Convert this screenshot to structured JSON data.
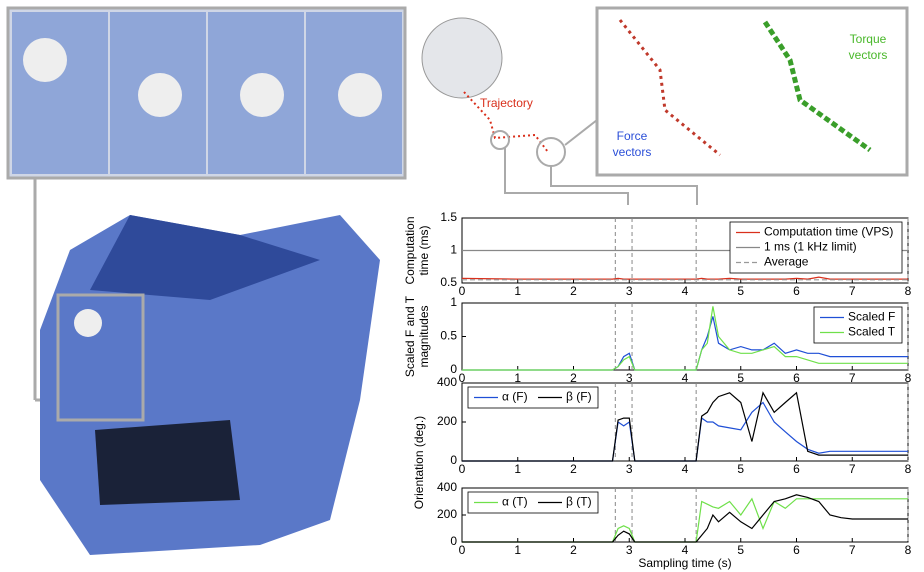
{
  "illustration": {
    "labels": [
      {
        "text": "Trajectory",
        "color": "#d9301c"
      },
      {
        "text": "Force vectors",
        "color": "#2b4fd8"
      },
      {
        "text": "Torque vectors",
        "color": "#49b82a"
      }
    ]
  },
  "highlight_x": [
    2.75,
    3.05,
    4.2,
    8
  ],
  "chart_data": [
    {
      "type": "line",
      "ylabel": [
        "Computation",
        "time (ms)"
      ],
      "x": [
        0,
        1,
        2,
        2.7,
        2.8,
        2.9,
        3.0,
        3.1,
        4.2,
        4.3,
        4.4,
        4.5,
        4.6,
        4.8,
        5.0,
        5.2,
        5.4,
        5.6,
        5.8,
        6.0,
        6.2,
        6.4,
        6.6,
        6.8,
        7.0,
        7.5,
        8.0
      ],
      "xlim": [
        0,
        8
      ],
      "xticks": [
        0,
        1,
        2,
        3,
        4,
        5,
        6,
        7,
        8
      ],
      "ylim": [
        0.5,
        1.5
      ],
      "yticks": [
        0.5,
        1,
        1.5
      ],
      "legend": "upper right",
      "series": [
        {
          "name": "Computation time (VPS)",
          "color": "#d9301c",
          "values": [
            0.57,
            0.56,
            0.56,
            0.56,
            0.57,
            0.56,
            0.56,
            0.56,
            0.56,
            0.57,
            0.56,
            0.56,
            0.56,
            0.57,
            0.56,
            0.56,
            0.56,
            0.56,
            0.56,
            0.57,
            0.56,
            0.59,
            0.56,
            0.56,
            0.56,
            0.56,
            0.56
          ]
        },
        {
          "name": "1 ms (1 kHz limit)",
          "color": "#888888",
          "values": [
            1,
            1,
            1,
            1,
            1,
            1,
            1,
            1,
            1,
            1,
            1,
            1,
            1,
            1,
            1,
            1,
            1,
            1,
            1,
            1,
            1,
            1,
            1,
            1,
            1,
            1,
            1
          ]
        },
        {
          "name": "Average",
          "color": "#999999",
          "dash": true,
          "values": [
            0.55,
            0.55,
            0.55,
            0.55,
            0.55,
            0.55,
            0.55,
            0.55,
            0.55,
            0.55,
            0.55,
            0.55,
            0.55,
            0.55,
            0.55,
            0.55,
            0.55,
            0.55,
            0.55,
            0.55,
            0.55,
            0.55,
            0.55,
            0.55,
            0.55,
            0.55,
            0.55
          ]
        }
      ]
    },
    {
      "type": "line",
      "ylabel": [
        "Scaled F and T",
        "magnitudes"
      ],
      "x": [
        0,
        1,
        2,
        2.7,
        2.8,
        2.9,
        3.0,
        3.1,
        4.2,
        4.3,
        4.4,
        4.5,
        4.6,
        4.8,
        5.0,
        5.2,
        5.4,
        5.6,
        5.8,
        6.0,
        6.2,
        6.4,
        6.6,
        6.8,
        7.0,
        7.5,
        8.0
      ],
      "xlim": [
        0,
        8
      ],
      "xticks": [
        0,
        1,
        2,
        3,
        4,
        5,
        6,
        7,
        8
      ],
      "ylim": [
        0,
        1
      ],
      "yticks": [
        0,
        0.5,
        1
      ],
      "legend": "upper right",
      "series": [
        {
          "name": "Scaled F",
          "color": "#1f4fd6",
          "values": [
            0,
            0,
            0,
            0,
            0.05,
            0.2,
            0.25,
            0,
            0,
            0.3,
            0.5,
            0.8,
            0.4,
            0.3,
            0.35,
            0.3,
            0.3,
            0.4,
            0.25,
            0.3,
            0.25,
            0.25,
            0.2,
            0.2,
            0.2,
            0.2,
            0.2
          ]
        },
        {
          "name": "Scaled T",
          "color": "#6fe04a",
          "values": [
            0,
            0,
            0,
            0,
            0.05,
            0.15,
            0.2,
            0,
            0,
            0.3,
            0.4,
            0.95,
            0.5,
            0.3,
            0.25,
            0.25,
            0.3,
            0.35,
            0.2,
            0.2,
            0.15,
            0.1,
            0.1,
            0.1,
            0.1,
            0.1,
            0.1
          ]
        }
      ]
    },
    {
      "type": "line",
      "ylabel": [
        "Orientation (deg.)"
      ],
      "x": [
        0,
        1,
        2,
        2.7,
        2.8,
        2.9,
        3.0,
        3.1,
        4.2,
        4.3,
        4.4,
        4.5,
        4.6,
        4.8,
        5.0,
        5.2,
        5.4,
        5.6,
        5.8,
        6.0,
        6.2,
        6.4,
        6.6,
        6.8,
        7.0,
        7.5,
        8.0
      ],
      "xlim": [
        0,
        8
      ],
      "xticks": [
        0,
        1,
        2,
        3,
        4,
        5,
        6,
        7,
        8
      ],
      "ylim": [
        0,
        400
      ],
      "yticks": [
        0,
        200,
        400
      ],
      "legend": "upper left",
      "series": [
        {
          "name": "α (F)",
          "color": "#1f4fd6",
          "values": [
            0,
            0,
            0,
            0,
            200,
            180,
            200,
            0,
            0,
            220,
            200,
            200,
            180,
            170,
            160,
            250,
            300,
            200,
            150,
            100,
            60,
            40,
            50,
            50,
            50,
            50,
            50
          ]
        },
        {
          "name": "β (F)",
          "color": "#000000",
          "values": [
            0,
            0,
            0,
            0,
            210,
            220,
            220,
            0,
            0,
            230,
            250,
            300,
            330,
            350,
            300,
            100,
            350,
            250,
            300,
            350,
            50,
            30,
            30,
            30,
            30,
            30,
            30
          ]
        }
      ]
    },
    {
      "type": "line",
      "xlabel": "Sampling time (s)",
      "x": [
        0,
        1,
        2,
        2.7,
        2.8,
        2.9,
        3.0,
        3.1,
        4.2,
        4.3,
        4.4,
        4.5,
        4.6,
        4.8,
        5.0,
        5.2,
        5.4,
        5.6,
        5.8,
        6.0,
        6.2,
        6.4,
        6.6,
        6.8,
        7.0,
        7.5,
        8.0
      ],
      "xlim": [
        0,
        8
      ],
      "xticks": [
        0,
        1,
        2,
        3,
        4,
        5,
        6,
        7,
        8
      ],
      "ylim": [
        0,
        400
      ],
      "yticks": [
        0,
        200,
        400
      ],
      "legend": "upper left",
      "series": [
        {
          "name": "α (T)",
          "color": "#6fe04a",
          "values": [
            0,
            0,
            0,
            0,
            100,
            120,
            100,
            0,
            0,
            300,
            280,
            260,
            250,
            300,
            200,
            320,
            100,
            300,
            250,
            320,
            320,
            320,
            320,
            320,
            320,
            320,
            320
          ]
        },
        {
          "name": "β (T)",
          "color": "#000000",
          "values": [
            0,
            0,
            0,
            0,
            50,
            80,
            60,
            0,
            0,
            50,
            100,
            200,
            150,
            220,
            150,
            100,
            200,
            300,
            320,
            350,
            330,
            300,
            200,
            180,
            170,
            170,
            170
          ]
        }
      ]
    }
  ]
}
